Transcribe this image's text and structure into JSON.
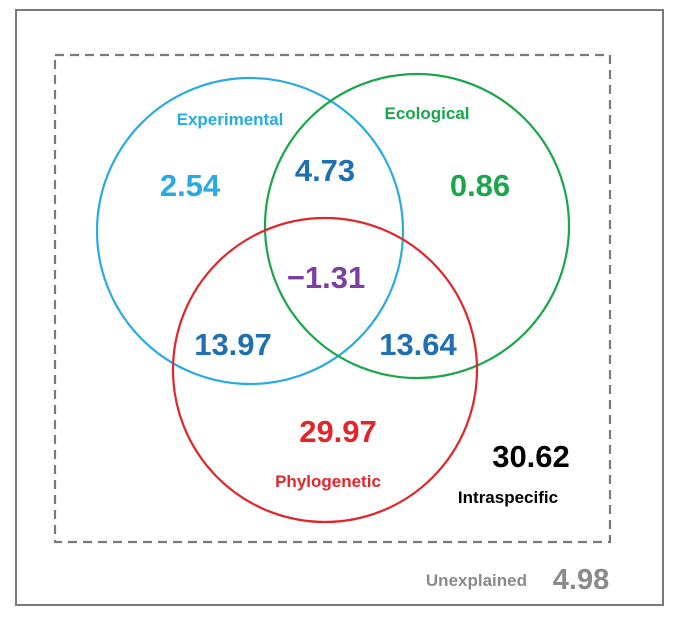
{
  "colors": {
    "experimental": "#29abe2",
    "ecological": "#1aa64a",
    "phylogenetic": "#e0262b",
    "overlap": "#1f6fb2",
    "center": "#7b3fa0",
    "intraspecific": "#000000",
    "unexplained": "#8a8a8a",
    "frame": "#7a7a7a",
    "dashed": "#7a7a7a"
  },
  "sets": {
    "experimental": "Experimental",
    "ecological": "Ecological",
    "phylogenetic": "Phylogenetic"
  },
  "regions": {
    "experimental_only": "2.54",
    "ecological_only": "0.86",
    "phylogenetic_only": "29.97",
    "experimental_ecological": "4.73",
    "experimental_phylogenetic": "13.97",
    "ecological_phylogenetic": "13.64",
    "all_three": "−1.31"
  },
  "intraspecific": {
    "value": "30.62",
    "label": "Intraspecific"
  },
  "unexplained": {
    "label": "Unexplained",
    "value": "4.98"
  }
}
